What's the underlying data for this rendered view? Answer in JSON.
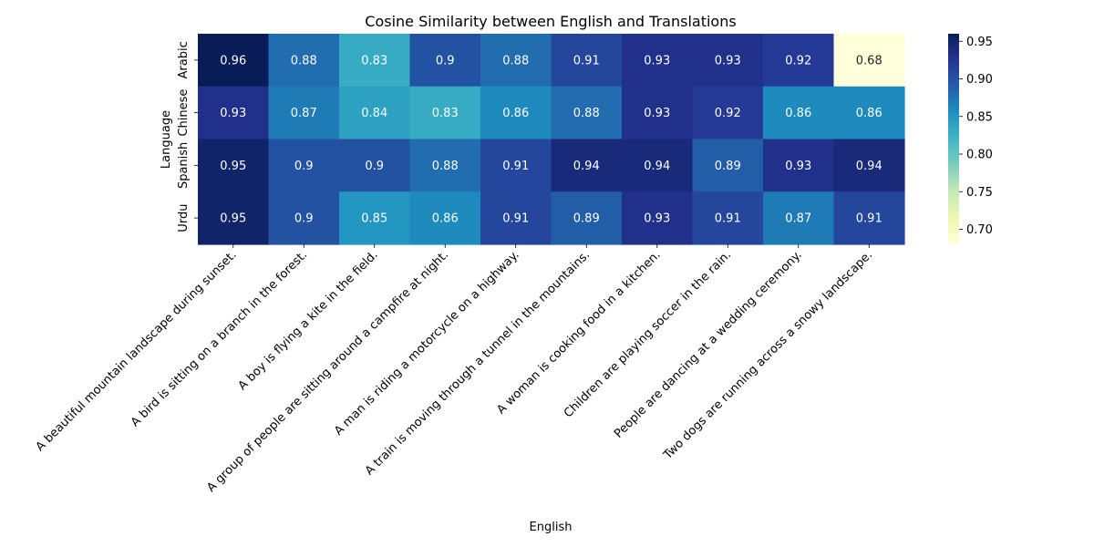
{
  "chart_data": {
    "type": "heatmap",
    "title": "Cosine Similarity between English and Translations",
    "xlabel": "English",
    "ylabel": "Language",
    "rows": [
      "Arabic",
      "Chinese",
      "Spanish",
      "Urdu"
    ],
    "columns": [
      "A beautiful mountain landscape during sunset.",
      "A bird is sitting on a branch in the forest.",
      "A boy is flying a kite in the field.",
      "A group of people are sitting around a campfire at night.",
      "A man is riding a motorcycle on a highway.",
      "A train is moving through a tunnel in the mountains.",
      "A woman is cooking food in a kitchen.",
      "Children are playing soccer in the rain.",
      "People are dancing at a wedding ceremony.",
      "Two dogs are running across a snowy landscape."
    ],
    "values": [
      [
        0.96,
        0.88,
        0.83,
        0.9,
        0.88,
        0.91,
        0.93,
        0.93,
        0.92,
        0.68
      ],
      [
        0.93,
        0.87,
        0.84,
        0.83,
        0.86,
        0.88,
        0.93,
        0.92,
        0.86,
        0.86
      ],
      [
        0.95,
        0.9,
        0.9,
        0.88,
        0.91,
        0.94,
        0.94,
        0.89,
        0.93,
        0.94
      ],
      [
        0.95,
        0.9,
        0.85,
        0.86,
        0.91,
        0.89,
        0.93,
        0.91,
        0.87,
        0.91
      ]
    ],
    "colormap": "YlGnBu",
    "color_range": [
      0.68,
      0.96
    ],
    "colorbar_ticks": [
      "0.70",
      "0.75",
      "0.80",
      "0.85",
      "0.90",
      "0.95"
    ],
    "annotations": true
  }
}
